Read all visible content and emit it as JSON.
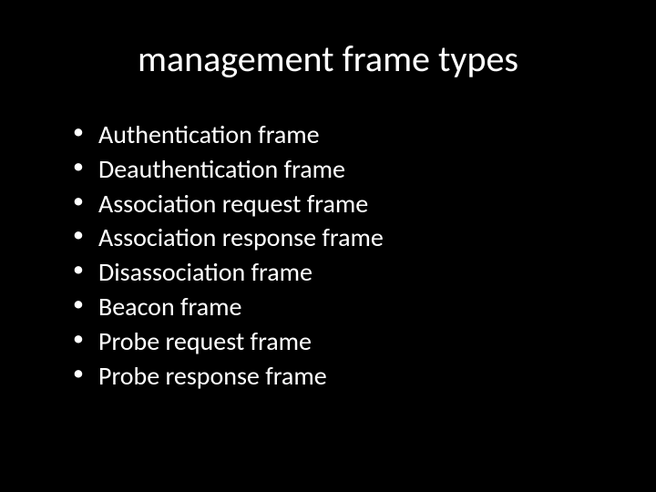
{
  "slide": {
    "title": "management frame types",
    "bullets": [
      "Authentication frame",
      "Deauthentication frame",
      "Association request frame",
      "Association response frame",
      "Disassociation frame",
      "Beacon frame",
      "Probe request frame",
      "Probe response frame"
    ],
    "background_color": "#000000",
    "text_color": "#ffffff",
    "title_fontsize": 40,
    "bullet_fontsize": 28
  }
}
